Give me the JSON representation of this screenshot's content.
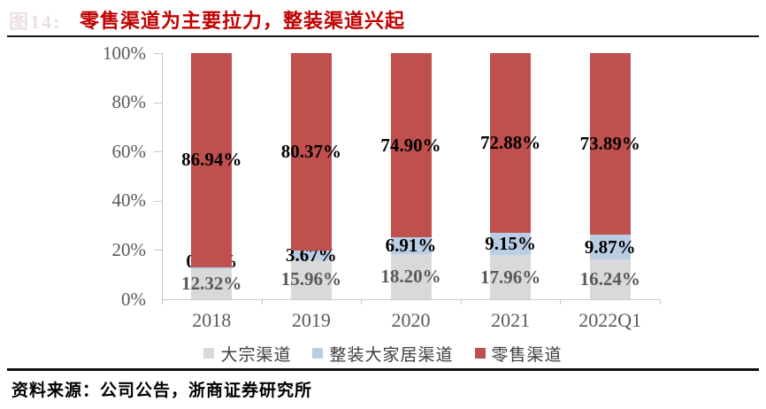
{
  "header": {
    "figure_label": "图14:",
    "title": "零售渠道为主要拉力，整装渠道兴起",
    "title_color": "#C00000"
  },
  "chart_data": {
    "type": "bar",
    "stacked": true,
    "percent_stacked": true,
    "title": "零售渠道为主要拉力，整装渠道兴起",
    "categories": [
      "2018",
      "2019",
      "2020",
      "2021",
      "2022Q1"
    ],
    "series": [
      {
        "name": "大宗渠道",
        "color": "#D9D9D9",
        "label_color": "#595959",
        "values": [
          12.32,
          15.96,
          18.2,
          17.96,
          16.24
        ]
      },
      {
        "name": "整装大家居渠道",
        "color": "#B9CDE5",
        "label_color": "#000000",
        "values": [
          0.74,
          3.67,
          6.91,
          9.15,
          9.87
        ]
      },
      {
        "name": "零售渠道",
        "color": "#C0504D",
        "label_color": "#000000",
        "values": [
          86.94,
          80.37,
          74.9,
          72.88,
          73.89
        ]
      }
    ],
    "xlabel": "",
    "ylabel": "",
    "ylim": [
      0,
      100
    ],
    "yticks": [
      0,
      20,
      40,
      60,
      80,
      100
    ],
    "ytick_suffix": "%",
    "grid": false,
    "legend_position": "bottom"
  },
  "footer": {
    "source": "资料来源：公司公告，浙商证券研究所"
  },
  "colors": {
    "title_red": "#C00000",
    "bar_red": "#C0504D",
    "bar_blue": "#B9CDE5",
    "bar_gray": "#D9D9D9",
    "axis_gray": "#C9C9C9",
    "text_gray": "#595959"
  }
}
